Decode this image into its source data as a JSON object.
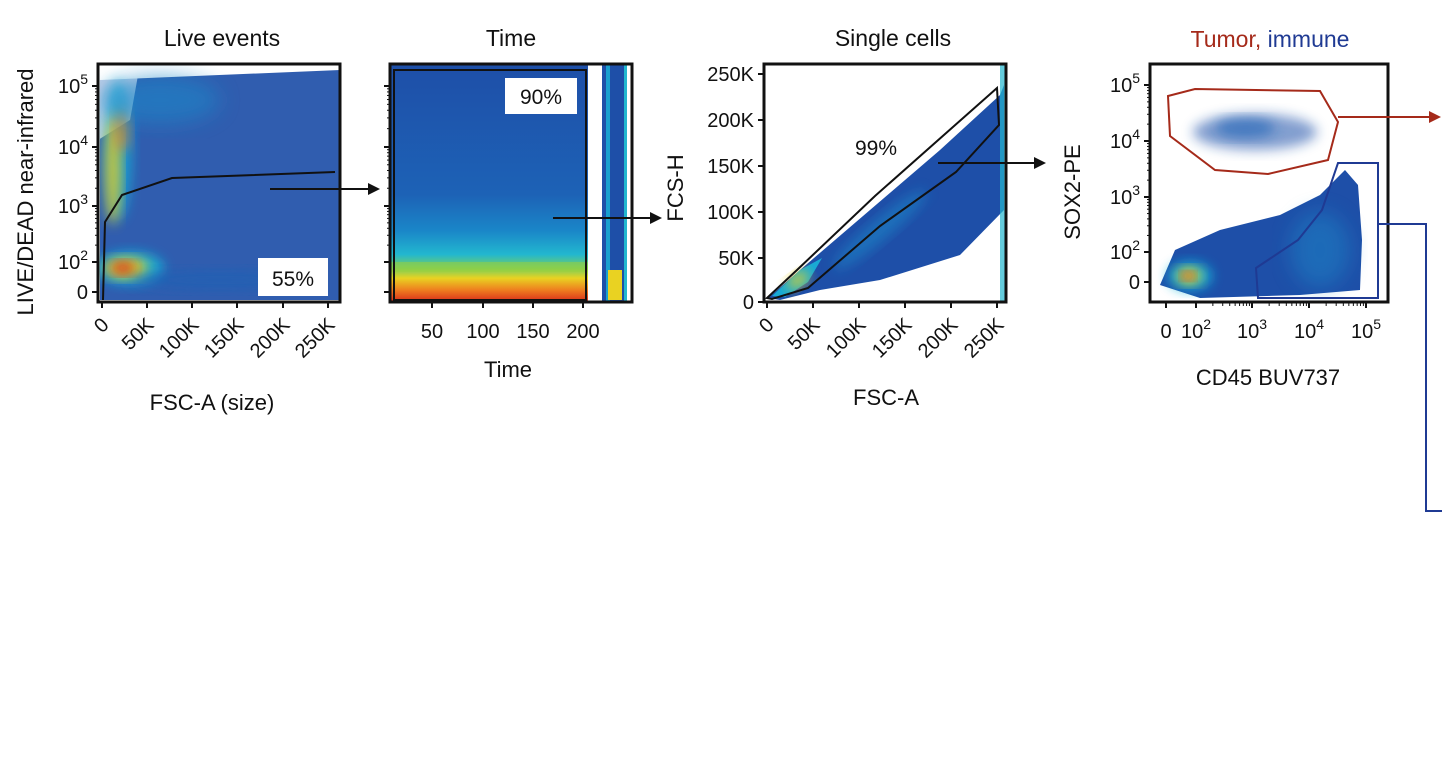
{
  "chart_data": [
    {
      "type": "scatter",
      "title": "Live events",
      "xlabel": "FSC-A (size)",
      "ylabel": "LIVE/DEAD near-infrared",
      "x_ticks": [
        "0",
        "50K",
        "100K",
        "150K",
        "200K",
        "250K"
      ],
      "y_ticks": [
        {
          "base": "0",
          "exp": ""
        },
        {
          "base": "10",
          "exp": "2"
        },
        {
          "base": "10",
          "exp": "3"
        },
        {
          "base": "10",
          "exp": "4"
        },
        {
          "base": "10",
          "exp": "5"
        }
      ],
      "xlim": [
        0,
        262144
      ],
      "ylim": [
        0,
        262144
      ],
      "y_scale": "biexponential",
      "gate_label": "55%",
      "gate_percent": 55,
      "display": "density pseudocolor",
      "grid": false
    },
    {
      "type": "scatter",
      "title": "Time",
      "xlabel": "Time",
      "ylabel": "",
      "x_ticks": [
        "50",
        "100",
        "150",
        "200"
      ],
      "xlim": [
        0,
        245
      ],
      "gate_label": "90%",
      "gate_percent": 90,
      "display": "density pseudocolor",
      "grid": false
    },
    {
      "type": "scatter",
      "title": "Single cells",
      "xlabel": "FSC-A",
      "ylabel": "FCS-H",
      "x_ticks": [
        "0",
        "50K",
        "100K",
        "150K",
        "200K",
        "250K"
      ],
      "y_ticks": [
        "0",
        "50K",
        "100K",
        "150K",
        "200K",
        "250K"
      ],
      "xlim": [
        0,
        262144
      ],
      "ylim": [
        0,
        262144
      ],
      "gate_label": "99%",
      "gate_percent": 99,
      "display": "density pseudocolor",
      "grid": false
    },
    {
      "type": "scatter",
      "title_parts": [
        {
          "text": "Tumor,",
          "color": "#a52a1a"
        },
        {
          "text": "immune",
          "color": "#1f3a93"
        }
      ],
      "xlabel": "CD45 BUV737",
      "ylabel": "SOX2-PE",
      "x_ticks": [
        {
          "base": "0",
          "exp": ""
        },
        {
          "base": "10",
          "exp": "2"
        },
        {
          "base": "10",
          "exp": "3"
        },
        {
          "base": "10",
          "exp": "4"
        },
        {
          "base": "10",
          "exp": "5"
        }
      ],
      "y_ticks": [
        {
          "base": "0",
          "exp": ""
        },
        {
          "base": "10",
          "exp": "2"
        },
        {
          "base": "10",
          "exp": "3"
        },
        {
          "base": "10",
          "exp": "4"
        },
        {
          "base": "10",
          "exp": "5"
        }
      ],
      "x_scale": "biexponential",
      "y_scale": "biexponential",
      "gates": [
        "Tumor",
        "immune"
      ],
      "display": "density pseudocolor",
      "grid": false
    }
  ],
  "colors": {
    "tumor_gate": "#a52a1a",
    "immune_gate": "#1f3a93",
    "gate_line": "#111111",
    "density_low": "#1e4fa8",
    "density_mid": "#18b4d8",
    "density_high": "#f0d21a",
    "density_peak": "#d8261c"
  }
}
